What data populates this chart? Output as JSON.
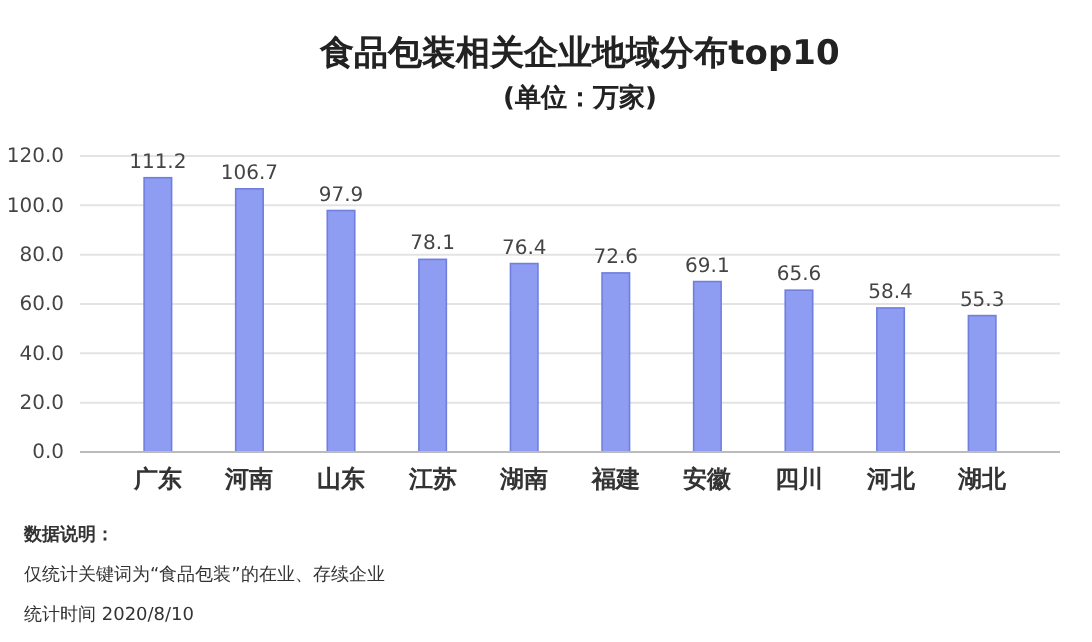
{
  "chart_data": {
    "type": "bar",
    "title": "食品包装相关企业地域分布top10",
    "subtitle": "(单位：万家)",
    "categories": [
      "广东",
      "河南",
      "山东",
      "江苏",
      "湖南",
      "福建",
      "安徽",
      "四川",
      "河北",
      "湖北"
    ],
    "values": [
      111.2,
      106.7,
      97.9,
      78.1,
      76.4,
      72.6,
      69.1,
      65.6,
      58.4,
      55.3
    ],
    "color": "#8e9cf2",
    "data_labels": true,
    "grid": "y",
    "ylim": [
      0,
      120
    ],
    "yticks": [
      {
        "value": 0,
        "label": "0.0"
      },
      {
        "value": 20,
        "label": "20.0"
      },
      {
        "value": 40,
        "label": "40.0"
      },
      {
        "value": 60,
        "label": "60.0"
      },
      {
        "value": 80,
        "label": "80.0"
      },
      {
        "value": 100,
        "label": "100.0"
      },
      {
        "value": 120,
        "label": "120.0"
      }
    ],
    "annotations": [
      "数据说明：",
      "仅统计关键词为“食品包装”的在业、存续企业",
      "统计时间 2020/8/10"
    ]
  }
}
